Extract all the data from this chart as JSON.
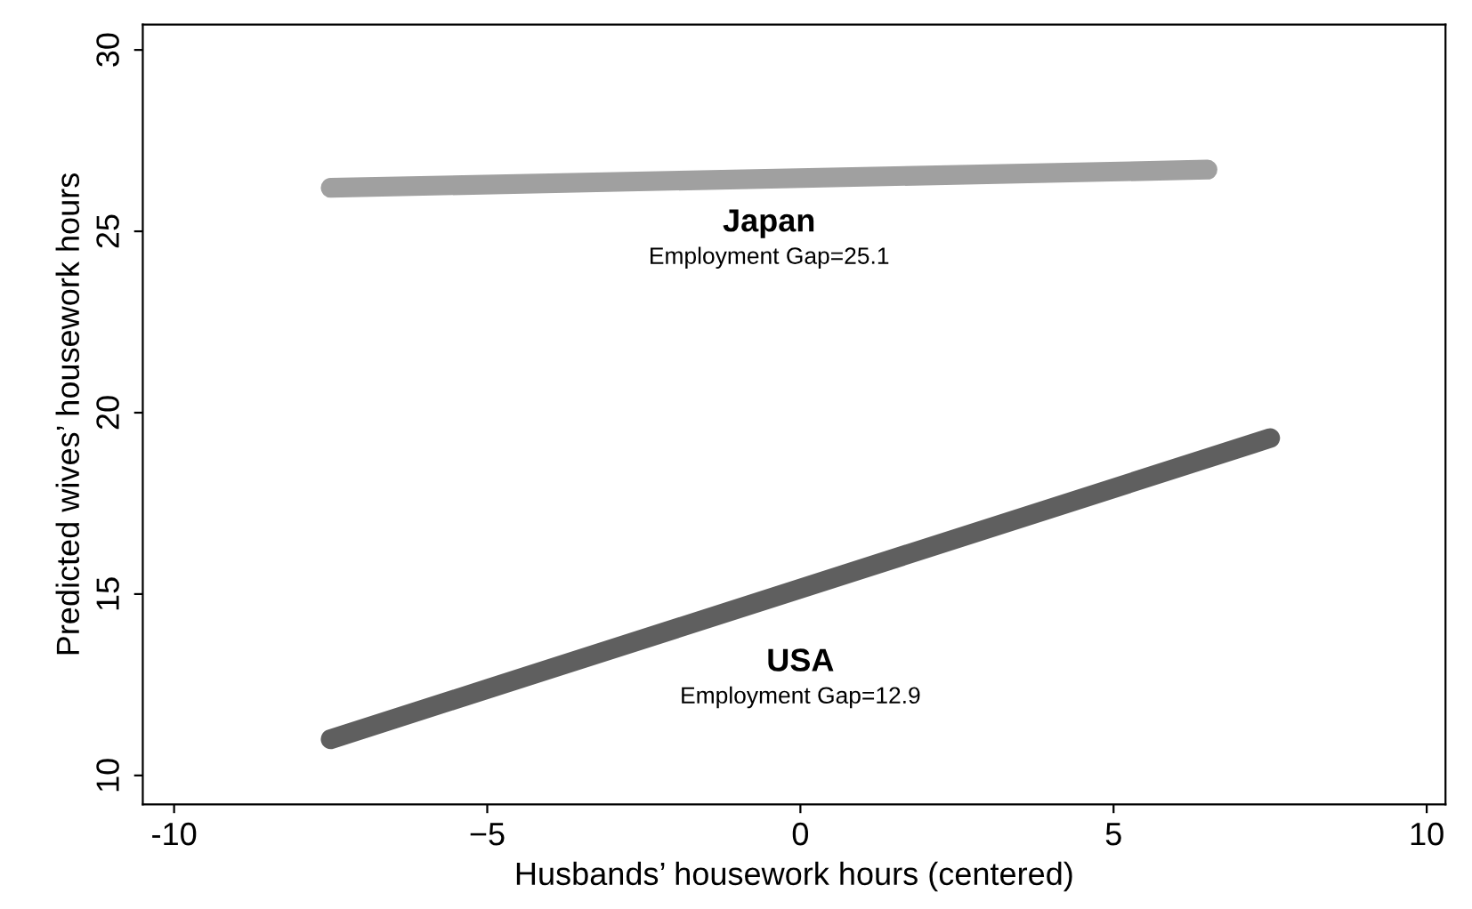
{
  "chart_data": {
    "type": "line",
    "xlabel": "Husbands’ housework hours (centered)",
    "ylabel": "Predicted wives’ housework hours",
    "series": [
      {
        "name": "Japan",
        "color": "#a0a0a0",
        "x": [
          -7.5,
          6.5
        ],
        "values": [
          26.2,
          26.7
        ]
      },
      {
        "name": "USA",
        "color": "#5f5f5f",
        "x": [
          -7.5,
          7.5
        ],
        "values": [
          11.0,
          19.3
        ]
      }
    ],
    "annotations": [
      "Employment Gap=25.1",
      "Employment Gap=12.9"
    ],
    "xlim": [
      -10.5,
      10.3
    ],
    "ylim": [
      9.2,
      30.7
    ],
    "xticks": [
      -10,
      {
        "value": -5,
        "label": "−5"
      },
      0,
      5,
      10
    ],
    "yticks": [
      10,
      15,
      20,
      25,
      30
    ],
    "grid": false,
    "legend": false,
    "line_style": "solid"
  }
}
